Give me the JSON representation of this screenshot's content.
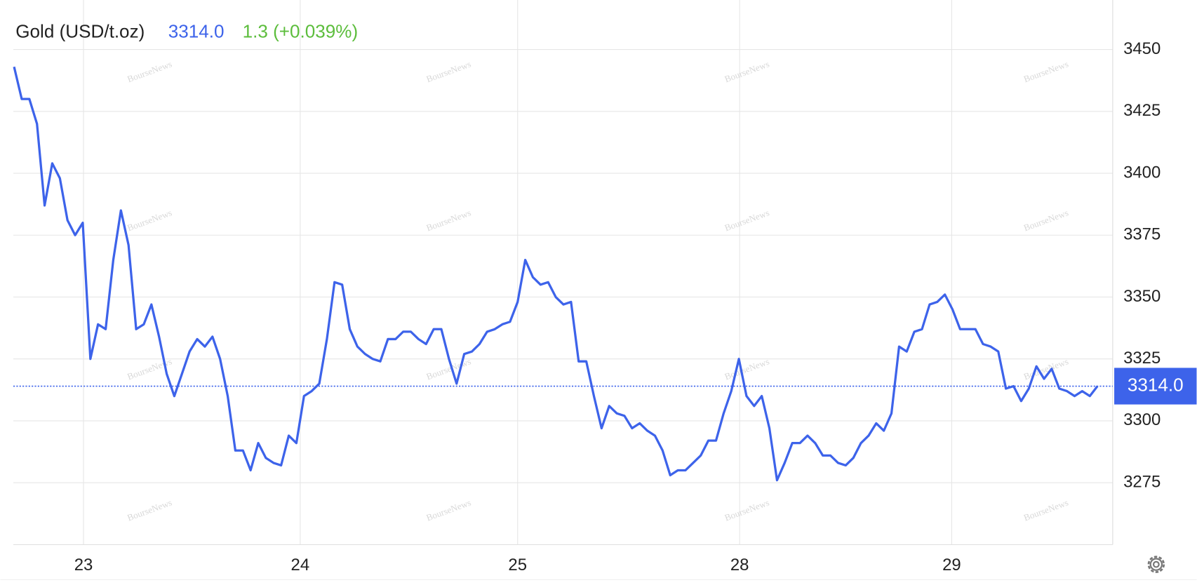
{
  "chart_data": {
    "type": "line",
    "instrument": "Gold (USD/t.oz)",
    "last": {
      "value": 3314.0,
      "label": "3314.0"
    },
    "change": "1.3 (+0.039%)",
    "watermark": "BourseNews",
    "series": [
      {
        "color": "#3d63ea",
        "values": [
          3443,
          3430,
          3430,
          3420,
          3387,
          3404,
          3398,
          3381,
          3375,
          3380,
          3325,
          3339,
          3337,
          3365,
          3385,
          3371,
          3337,
          3339,
          3347,
          3334,
          3319,
          3310,
          3319,
          3328,
          3333,
          3330,
          3334,
          3325,
          3310,
          3288,
          3288,
          3280,
          3291,
          3285,
          3283,
          3282,
          3294,
          3291,
          3310,
          3312,
          3315,
          3333,
          3356,
          3355,
          3337,
          3330,
          3327,
          3325,
          3324,
          3333,
          3333,
          3336,
          3336,
          3333,
          3331,
          3337,
          3337,
          3325,
          3315,
          3327,
          3328,
          3331,
          3336,
          3337,
          3339,
          3340,
          3348,
          3365,
          3358,
          3355,
          3356,
          3350,
          3347,
          3348,
          3324,
          3324,
          3310,
          3297,
          3306,
          3303,
          3302,
          3297,
          3299,
          3296,
          3294,
          3288,
          3278,
          3280,
          3280,
          3283,
          3286,
          3292,
          3292,
          3303,
          3312,
          3325,
          3310,
          3306,
          3310,
          3297,
          3276,
          3283,
          3291,
          3291,
          3294,
          3291,
          3286,
          3286,
          3283,
          3282,
          3285,
          3291,
          3294,
          3299,
          3296,
          3303,
          3330,
          3328,
          3336,
          3337,
          3347,
          3348,
          3351,
          3345,
          3337,
          3337,
          3337,
          3331,
          3330,
          3328,
          3313,
          3314,
          3308,
          3313,
          3322,
          3317,
          3321,
          3313,
          3312,
          3310,
          3312,
          3310,
          3314
        ]
      }
    ],
    "xlim": [
      0,
      142
    ],
    "xticks": [
      {
        "value": 9.1,
        "label": "23"
      },
      {
        "value": 37.5,
        "label": "24"
      },
      {
        "value": 66,
        "label": "25"
      },
      {
        "value": 95.1,
        "label": "28"
      },
      {
        "value": 122.9,
        "label": "29"
      }
    ],
    "ylim": [
      3250,
      3470
    ],
    "yticks": [
      3275,
      3300,
      3325,
      3350,
      3375,
      3400,
      3425,
      3450
    ],
    "grid": true
  }
}
